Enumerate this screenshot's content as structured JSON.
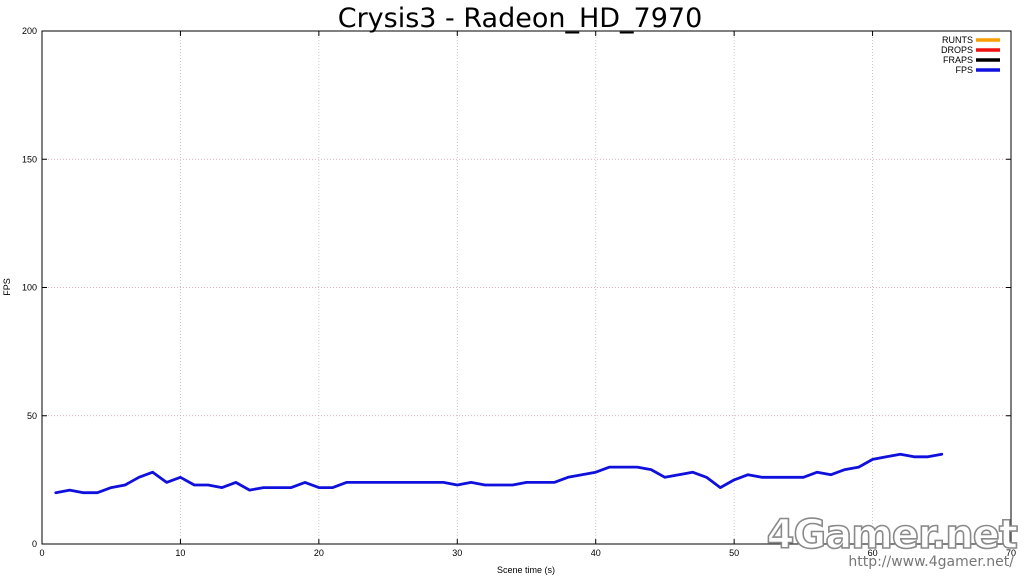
{
  "chart_data": {
    "type": "line",
    "title": "Crysis3 - Radeon_HD_7970",
    "xlabel": "Scene time (s)",
    "ylabel": "FPS",
    "xlim": [
      0,
      70
    ],
    "ylim": [
      0,
      200
    ],
    "xticks": [
      0,
      10,
      20,
      30,
      40,
      50,
      60,
      70
    ],
    "yticks": [
      0,
      50,
      100,
      150,
      200
    ],
    "grid": true,
    "legend_position": "top-right",
    "legend": [
      {
        "name": "RUNTS",
        "color": "#f5a000"
      },
      {
        "name": "DROPS",
        "color": "#ee1111"
      },
      {
        "name": "FRAPS",
        "color": "#000000"
      },
      {
        "name": "FPS",
        "color": "#1010dd"
      }
    ],
    "series": [
      {
        "name": "FPS",
        "color": "#1010dd",
        "x": [
          1,
          2,
          3,
          4,
          5,
          6,
          7,
          8,
          9,
          10,
          11,
          12,
          13,
          14,
          15,
          16,
          17,
          18,
          19,
          20,
          21,
          22,
          23,
          24,
          25,
          26,
          27,
          28,
          29,
          30,
          31,
          32,
          33,
          34,
          35,
          36,
          37,
          38,
          39,
          40,
          41,
          42,
          43,
          44,
          45,
          46,
          47,
          48,
          49,
          50,
          51,
          52,
          53,
          54,
          55,
          56,
          57,
          58,
          59,
          60,
          61,
          62,
          63,
          64,
          65
        ],
        "y": [
          20,
          21,
          20,
          20,
          22,
          23,
          26,
          28,
          24,
          26,
          23,
          23,
          22,
          24,
          21,
          22,
          22,
          22,
          24,
          22,
          22,
          24,
          24,
          24,
          24,
          24,
          24,
          24,
          24,
          23,
          24,
          23,
          23,
          23,
          24,
          24,
          24,
          26,
          27,
          28,
          30,
          30,
          30,
          29,
          26,
          27,
          28,
          26,
          22,
          25,
          27,
          26,
          26,
          26,
          26,
          28,
          27,
          29,
          30,
          33,
          34,
          35,
          34,
          34,
          35
        ]
      }
    ]
  },
  "watermark": {
    "brand": "4Gamer.net",
    "url": "http://www.4gamer.net/"
  }
}
